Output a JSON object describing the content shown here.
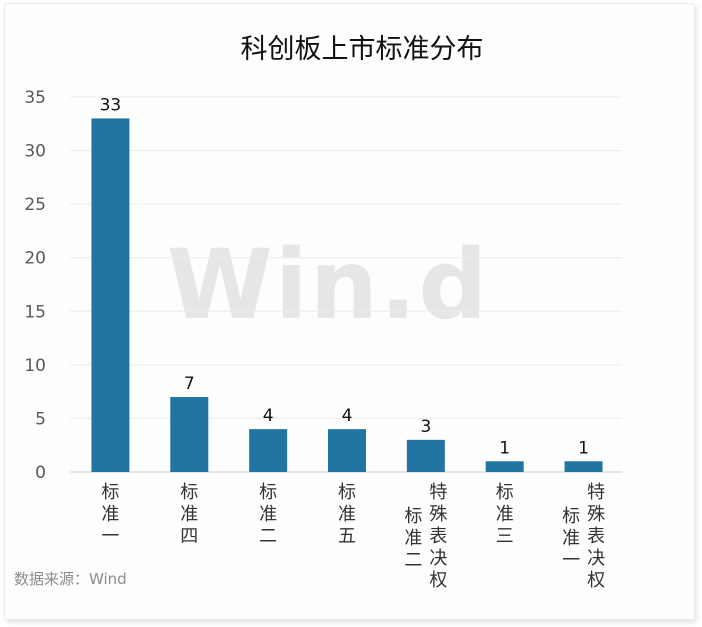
{
  "chart_data": {
    "type": "bar",
    "title": "科创板上市标准分布",
    "categories": [
      [
        "标准一"
      ],
      [
        "标准四"
      ],
      [
        "标准二"
      ],
      [
        "标准五"
      ],
      [
        "标准二",
        "特殊表决权"
      ],
      [
        "标准三"
      ],
      [
        "标准一",
        "特殊表决权"
      ]
    ],
    "values": [
      33,
      7,
      4,
      4,
      3,
      1,
      1
    ],
    "yticks": [
      0,
      5,
      10,
      15,
      20,
      25,
      30,
      35
    ],
    "ylim": [
      0,
      35
    ],
    "bar_color": "#2275a3",
    "grid": true,
    "legend": "none"
  },
  "source": "数据来源：Wind",
  "watermark": "Win.d"
}
